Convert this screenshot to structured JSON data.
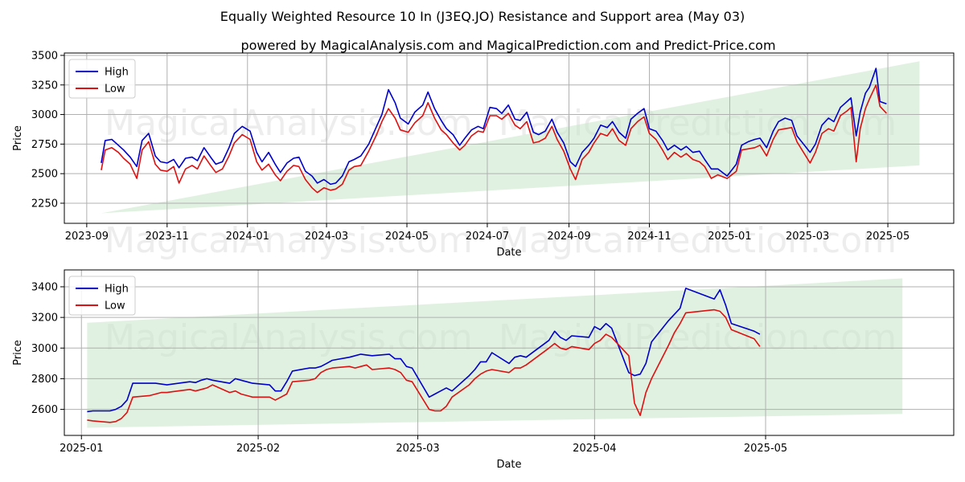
{
  "title": "Equally Weighted Resource 10 In (J3EQ.JO) Resistance and Support area (May 03)",
  "subtitle": "powered by MagicalAnalysis.com and MagicalPrediction.com and Predict-Price.com",
  "watermark_left": "MagicalAnalysis.com",
  "watermark_right": "MagicalPrediction.com",
  "colors": {
    "high": "#0000cc",
    "low": "#dd1111",
    "band": "#c8e6c8",
    "grid": "#b0b0b0"
  },
  "chart_data": [
    {
      "type": "line",
      "xlabel": "Date",
      "ylabel": "Price",
      "x_ticks": [
        "2023-09",
        "2023-11",
        "2024-01",
        "2024-03",
        "2024-05",
        "2024-07",
        "2024-09",
        "2024-11",
        "2025-01",
        "2025-03",
        "2025-05"
      ],
      "y_ticks": [
        2250,
        2500,
        2750,
        3000,
        3250,
        3500
      ],
      "xlim": [
        "2023-08-15",
        "2025-06-20"
      ],
      "ylim": [
        2080,
        3520
      ],
      "grid": true,
      "legend": "top-left",
      "band": {
        "x": [
          "2023-09-12",
          "2025-05-25"
        ],
        "lower": [
          2165,
          2570
        ],
        "upper": [
          2165,
          3450
        ]
      },
      "x": [
        "2023-09-12",
        "2023-09-15",
        "2023-09-20",
        "2023-09-25",
        "2023-09-29",
        "2023-10-04",
        "2023-10-09",
        "2023-10-13",
        "2023-10-18",
        "2023-10-23",
        "2023-10-27",
        "2023-11-01",
        "2023-11-06",
        "2023-11-10",
        "2023-11-15",
        "2023-11-20",
        "2023-11-24",
        "2023-11-29",
        "2023-12-04",
        "2023-12-08",
        "2023-12-13",
        "2023-12-18",
        "2023-12-22",
        "2023-12-28",
        "2024-01-03",
        "2024-01-08",
        "2024-01-12",
        "2024-01-17",
        "2024-01-22",
        "2024-01-26",
        "2024-01-31",
        "2024-02-05",
        "2024-02-09",
        "2024-02-14",
        "2024-02-19",
        "2024-02-23",
        "2024-02-28",
        "2024-03-04",
        "2024-03-08",
        "2024-03-13",
        "2024-03-18",
        "2024-03-22",
        "2024-03-27",
        "2024-04-02",
        "2024-04-08",
        "2024-04-12",
        "2024-04-17",
        "2024-04-22",
        "2024-04-26",
        "2024-05-02",
        "2024-05-07",
        "2024-05-13",
        "2024-05-17",
        "2024-05-22",
        "2024-05-27",
        "2024-05-31",
        "2024-06-05",
        "2024-06-10",
        "2024-06-14",
        "2024-06-19",
        "2024-06-24",
        "2024-06-28",
        "2024-07-03",
        "2024-07-08",
        "2024-07-12",
        "2024-07-17",
        "2024-07-22",
        "2024-07-26",
        "2024-07-31",
        "2024-08-05",
        "2024-08-09",
        "2024-08-14",
        "2024-08-19",
        "2024-08-23",
        "2024-08-28",
        "2024-09-02",
        "2024-09-06",
        "2024-09-11",
        "2024-09-16",
        "2024-09-20",
        "2024-09-25",
        "2024-09-30",
        "2024-10-04",
        "2024-10-09",
        "2024-10-14",
        "2024-10-18",
        "2024-10-23",
        "2024-10-28",
        "2024-11-01",
        "2024-11-06",
        "2024-11-11",
        "2024-11-15",
        "2024-11-20",
        "2024-11-25",
        "2024-11-29",
        "2024-12-04",
        "2024-12-09",
        "2024-12-13",
        "2024-12-18",
        "2024-12-23",
        "2024-12-30",
        "2025-01-06",
        "2025-01-10",
        "2025-01-15",
        "2025-01-20",
        "2025-01-24",
        "2025-01-29",
        "2025-02-03",
        "2025-02-07",
        "2025-02-12",
        "2025-02-17",
        "2025-02-21",
        "2025-02-26",
        "2025-03-03",
        "2025-03-07",
        "2025-03-12",
        "2025-03-17",
        "2025-03-21",
        "2025-03-26",
        "2025-03-31",
        "2025-04-03",
        "2025-04-07",
        "2025-04-10",
        "2025-04-14",
        "2025-04-17",
        "2025-04-22",
        "2025-04-25",
        "2025-04-30"
      ],
      "series": [
        {
          "name": "High",
          "values": [
            2590,
            2780,
            2790,
            2740,
            2700,
            2640,
            2560,
            2780,
            2840,
            2650,
            2600,
            2590,
            2620,
            2550,
            2630,
            2640,
            2610,
            2720,
            2640,
            2580,
            2600,
            2720,
            2840,
            2900,
            2860,
            2680,
            2600,
            2680,
            2580,
            2510,
            2590,
            2630,
            2640,
            2520,
            2480,
            2420,
            2450,
            2410,
            2420,
            2480,
            2600,
            2620,
            2650,
            2750,
            2900,
            3000,
            3210,
            3100,
            2970,
            2920,
            3020,
            3080,
            3190,
            3050,
            2950,
            2880,
            2830,
            2740,
            2800,
            2870,
            2900,
            2880,
            3060,
            3050,
            3010,
            3080,
            2960,
            2950,
            3020,
            2850,
            2830,
            2860,
            2960,
            2850,
            2760,
            2600,
            2560,
            2680,
            2740,
            2800,
            2910,
            2890,
            2940,
            2850,
            2800,
            2960,
            3010,
            3050,
            2880,
            2860,
            2780,
            2700,
            2740,
            2700,
            2730,
            2680,
            2690,
            2620,
            2540,
            2540,
            2480,
            2580,
            2740,
            2770,
            2790,
            2800,
            2720,
            2860,
            2940,
            2970,
            2950,
            2820,
            2750,
            2680,
            2750,
            2910,
            2970,
            2940,
            3060,
            3110,
            3140,
            2820,
            3020,
            3180,
            3230,
            3390,
            3110,
            3090
          ]
        },
        {
          "name": "Low",
          "values": [
            2530,
            2700,
            2720,
            2680,
            2630,
            2580,
            2460,
            2700,
            2770,
            2580,
            2530,
            2520,
            2560,
            2420,
            2540,
            2570,
            2540,
            2650,
            2570,
            2510,
            2540,
            2650,
            2760,
            2830,
            2790,
            2600,
            2530,
            2580,
            2490,
            2440,
            2520,
            2570,
            2560,
            2450,
            2380,
            2340,
            2380,
            2360,
            2370,
            2410,
            2530,
            2560,
            2570,
            2690,
            2830,
            2940,
            3050,
            2970,
            2870,
            2850,
            2930,
            2990,
            3100,
            2970,
            2870,
            2830,
            2760,
            2700,
            2740,
            2820,
            2860,
            2850,
            2990,
            2990,
            2960,
            3010,
            2910,
            2880,
            2940,
            2760,
            2770,
            2800,
            2900,
            2790,
            2690,
            2540,
            2450,
            2620,
            2680,
            2760,
            2840,
            2820,
            2880,
            2780,
            2740,
            2880,
            2940,
            2980,
            2840,
            2790,
            2700,
            2620,
            2680,
            2640,
            2670,
            2620,
            2600,
            2560,
            2460,
            2490,
            2460,
            2520,
            2700,
            2710,
            2720,
            2740,
            2650,
            2790,
            2870,
            2880,
            2890,
            2770,
            2680,
            2590,
            2680,
            2840,
            2880,
            2860,
            2990,
            3030,
            3060,
            2600,
            2880,
            3050,
            3130,
            3250,
            3070,
            3010
          ]
        }
      ]
    },
    {
      "type": "line",
      "xlabel": "Date",
      "ylabel": "Price",
      "x_ticks": [
        "2025-01",
        "2025-02",
        "2025-03",
        "2025-04",
        "2025-05"
      ],
      "y_ticks": [
        2600,
        2800,
        3000,
        3200,
        3400
      ],
      "xlim": [
        "2024-12-29",
        "2025-06-03"
      ],
      "ylim": [
        2430,
        3510
      ],
      "grid": true,
      "legend": "top-left",
      "band": {
        "x": [
          "2025-01-02",
          "2025-05-25"
        ],
        "lower": [
          2480,
          2570
        ],
        "upper": [
          3165,
          3455
        ]
      },
      "x": [
        "2025-01-02",
        "2025-01-03",
        "2025-01-06",
        "2025-01-07",
        "2025-01-08",
        "2025-01-09",
        "2025-01-10",
        "2025-01-13",
        "2025-01-14",
        "2025-01-15",
        "2025-01-16",
        "2025-01-17",
        "2025-01-20",
        "2025-01-21",
        "2025-01-22",
        "2025-01-23",
        "2025-01-24",
        "2025-01-27",
        "2025-01-28",
        "2025-01-29",
        "2025-01-30",
        "2025-01-31",
        "2025-02-03",
        "2025-02-04",
        "2025-02-05",
        "2025-02-06",
        "2025-02-07",
        "2025-02-10",
        "2025-02-11",
        "2025-02-12",
        "2025-02-13",
        "2025-02-14",
        "2025-02-17",
        "2025-02-18",
        "2025-02-19",
        "2025-02-20",
        "2025-02-21",
        "2025-02-24",
        "2025-02-25",
        "2025-02-26",
        "2025-02-27",
        "2025-02-28",
        "2025-03-03",
        "2025-03-04",
        "2025-03-05",
        "2025-03-06",
        "2025-03-07",
        "2025-03-10",
        "2025-03-11",
        "2025-03-12",
        "2025-03-13",
        "2025-03-14",
        "2025-03-17",
        "2025-03-18",
        "2025-03-19",
        "2025-03-20",
        "2025-03-24",
        "2025-03-25",
        "2025-03-26",
        "2025-03-27",
        "2025-03-28",
        "2025-03-31",
        "2025-04-01",
        "2025-04-02",
        "2025-04-03",
        "2025-04-04",
        "2025-04-07",
        "2025-04-08",
        "2025-04-09",
        "2025-04-10",
        "2025-04-11",
        "2025-04-14",
        "2025-04-15",
        "2025-04-16",
        "2025-04-17",
        "2025-04-22",
        "2025-04-23",
        "2025-04-24",
        "2025-04-25",
        "2025-04-29",
        "2025-04-30"
      ],
      "series": [
        {
          "name": "High",
          "values": [
            2585,
            2590,
            2590,
            2600,
            2620,
            2660,
            2770,
            2770,
            2770,
            2765,
            2760,
            2765,
            2780,
            2775,
            2790,
            2800,
            2790,
            2770,
            2800,
            2790,
            2780,
            2770,
            2760,
            2720,
            2720,
            2780,
            2850,
            2870,
            2870,
            2880,
            2900,
            2920,
            2940,
            2950,
            2960,
            2955,
            2950,
            2960,
            2930,
            2930,
            2880,
            2870,
            2680,
            2700,
            2720,
            2740,
            2720,
            2820,
            2860,
            2910,
            2910,
            2970,
            2900,
            2940,
            2950,
            2940,
            3050,
            3110,
            3070,
            3050,
            3080,
            3070,
            3140,
            3120,
            3160,
            3130,
            2840,
            2820,
            2830,
            2900,
            3040,
            3180,
            3220,
            3260,
            3390,
            3320,
            3380,
            3280,
            3160,
            3110,
            3090
          ]
        },
        {
          "name": "Low",
          "values": [
            2530,
            2525,
            2515,
            2520,
            2540,
            2580,
            2680,
            2690,
            2700,
            2710,
            2710,
            2715,
            2730,
            2720,
            2730,
            2740,
            2760,
            2710,
            2720,
            2700,
            2690,
            2680,
            2680,
            2660,
            2680,
            2700,
            2780,
            2790,
            2800,
            2840,
            2860,
            2870,
            2880,
            2870,
            2880,
            2890,
            2860,
            2870,
            2860,
            2840,
            2790,
            2780,
            2600,
            2590,
            2590,
            2620,
            2680,
            2760,
            2800,
            2830,
            2850,
            2860,
            2840,
            2870,
            2870,
            2890,
            3000,
            3030,
            3000,
            2990,
            3010,
            2990,
            3030,
            3050,
            3090,
            3070,
            2950,
            2640,
            2560,
            2710,
            2800,
            3020,
            3100,
            3160,
            3230,
            3250,
            3240,
            3200,
            3120,
            3060,
            3010
          ]
        }
      ]
    }
  ]
}
